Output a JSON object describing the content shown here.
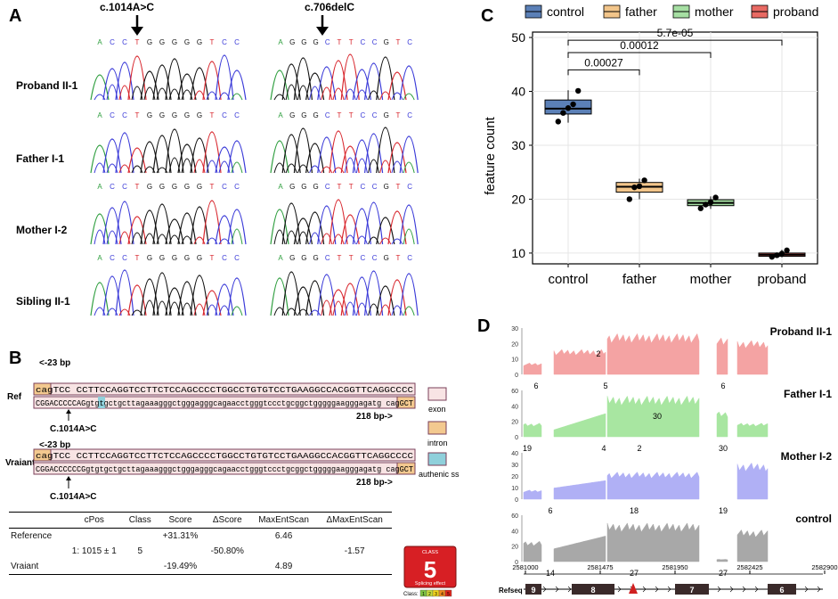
{
  "panelA": {
    "letter": "A",
    "mutation1": "c.1014A>C",
    "mutation2": "c.706delC",
    "seq1": [
      "A",
      "C",
      "C",
      "T",
      "G",
      "G",
      "G",
      "G",
      "G",
      "T",
      "C",
      "C"
    ],
    "seq2": [
      "A",
      "G",
      "G",
      "G",
      "C",
      "T",
      "T",
      "C",
      "C",
      "G",
      "T",
      "C"
    ],
    "rows": [
      "Proband II-1",
      "Father I-1",
      "Mother I-2",
      "Sibling II-1"
    ],
    "base_colors": {
      "A": "#2e9e3e",
      "C": "#3a3ad8",
      "G": "#111111",
      "T": "#d8262d"
    }
  },
  "panelB": {
    "letter": "B",
    "ref_label": "Ref",
    "variant_label": "Vraiant",
    "bp_left": "<-23 bp",
    "bp_right": "218 bp->",
    "mut_label": "C.1014A>C",
    "ref_line1": "cagTCC   CCTTCCAGGTCCTTCTCCAGCCCCTGGCCTGTGTCCTGAAGGCCACGGTTCAGGCCCC",
    "ref_line2": "CGGACCCCCAGgtgtgctgcttagaaagggctgggagggcagaacctgggtccctgcggctgggggaagggagatg   cagGCT",
    "var_line1": "cagTCC   CCTTCCAGGTCCTTCTCCAGCCCCTGGCCTGTGTCCTGAAGGCCACGGTTCAGGCCCC",
    "var_line2": "CGGACCCCCCGgtgtgctgcttagaaagggctgggagggcagaacctgggtccctgcggctgggggaagggagatg   cagGCT",
    "legend": [
      "exon",
      "intron",
      "authenic ss"
    ],
    "table": {
      "headers": [
        "",
        "cPos",
        "Class",
        "Score",
        "ΔScore",
        "MaxEntScan",
        "ΔMaxEntScan"
      ],
      "rows": [
        [
          "Reference",
          "",
          "",
          "+31.31%",
          "",
          "6.46",
          ""
        ],
        [
          "",
          "1: 1015 ± 1",
          "5",
          "",
          "-50.80%",
          "",
          "-1.57"
        ],
        [
          "Vraiant",
          "",
          "",
          "-19.49%",
          "",
          "4.89",
          ""
        ]
      ]
    },
    "class_badge": {
      "top": "CLASS",
      "value": "5",
      "bottom": "Splicing effect",
      "scale_label": "Class:",
      "scale": [
        "1",
        "2",
        "3",
        "4",
        "5"
      ]
    }
  },
  "panelC": {
    "letter": "C"
  },
  "chart_data": {
    "type": "box",
    "title": "",
    "xlabel": "",
    "ylabel": "feature count",
    "ylim": [
      8,
      51
    ],
    "yticks": [
      10,
      20,
      30,
      40,
      50
    ],
    "categories": [
      "control",
      "father",
      "mother",
      "proband"
    ],
    "legend": [
      "control",
      "father",
      "mother",
      "proband"
    ],
    "colors": [
      "#5b80b7",
      "#f2c58a",
      "#a6dfa3",
      "#e86a63"
    ],
    "boxes": [
      {
        "name": "control",
        "q1": 35.8,
        "median": 36.8,
        "q3": 38.4,
        "min": 34.2,
        "max": 40.2,
        "points": [
          34.4,
          36.0,
          36.9,
          37.6,
          40.1
        ]
      },
      {
        "name": "father",
        "q1": 21.3,
        "median": 22.3,
        "q3": 23.1,
        "min": 20.0,
        "max": 23.8,
        "points": [
          20.0,
          22.2,
          22.4,
          23.5
        ]
      },
      {
        "name": "mother",
        "q1": 18.8,
        "median": 19.3,
        "q3": 19.9,
        "min": 18.2,
        "max": 20.5,
        "points": [
          18.3,
          19.0,
          19.4,
          20.3
        ]
      },
      {
        "name": "proband",
        "q1": 9.4,
        "median": 9.7,
        "q3": 10.0,
        "min": 9.2,
        "max": 10.6,
        "points": [
          9.3,
          9.6,
          9.9,
          10.5
        ]
      }
    ],
    "comparisons": [
      {
        "a": "control",
        "b": "father",
        "p": "0.00027"
      },
      {
        "a": "control",
        "b": "mother",
        "p": "0.00012"
      },
      {
        "a": "control",
        "b": "proband",
        "p": "5.7e-05"
      }
    ]
  },
  "panelD": {
    "letter": "D",
    "tracks": [
      {
        "name": "Proband II-1",
        "color": "#f4a3a3",
        "yticks": [
          "30",
          "20",
          "10",
          "0"
        ],
        "junctions": [
          "2",
          "6",
          "5",
          "6"
        ]
      },
      {
        "name": "Father I-1",
        "color": "#a8e6a1",
        "yticks": [
          "60",
          "40",
          "20",
          "0"
        ],
        "junctions": [
          "30",
          "19",
          "4",
          "2",
          "30"
        ]
      },
      {
        "name": "Mother I-2",
        "color": "#b0b0f5",
        "yticks": [
          "40",
          "30",
          "20",
          "10",
          "0"
        ],
        "junctions": [
          "6",
          "18",
          "19"
        ]
      },
      {
        "name": "control",
        "color": "#a8a8a8",
        "yticks": [
          "60",
          "40",
          "20",
          "0"
        ],
        "junctions": [
          "14",
          "27",
          "27"
        ]
      }
    ],
    "axis_ticks": [
      "2581000",
      "2581475",
      "2581950",
      "2582425",
      "2582900"
    ],
    "refseq_label": "Refseq",
    "exons": [
      "9",
      "8",
      "7",
      "6"
    ]
  }
}
